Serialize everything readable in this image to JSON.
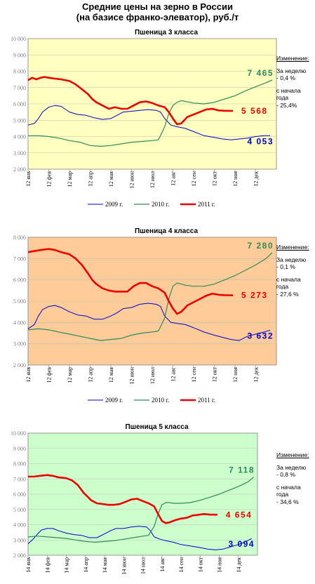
{
  "title_line1": "Средние цены на зерно в России",
  "title_line2": "(на базисе франко-элеватор), руб./т",
  "change_header": "Изменение:",
  "week_label": "За неделю",
  "since_label": "с начала\nгода",
  "colors": {
    "y2009": "#0000cc",
    "y2010": "#2e8b57",
    "y2011": "#ee0000",
    "grid": "#bfbfbf"
  },
  "chart_data": [
    {
      "type": "line",
      "title": "Пшеница 3 класса",
      "background": "#ffffc0",
      "ylim": [
        2000,
        10000
      ],
      "yticks": [
        2000,
        3000,
        4000,
        5000,
        6000,
        7000,
        8000,
        9000,
        10000
      ],
      "ytick_labels": [
        "2 000",
        "3 000",
        "4 000",
        "5 000",
        "6 000",
        "7 000",
        "8 000",
        "9 000",
        "10 000"
      ],
      "xticks": [
        "12 янв",
        "12 фев",
        "12 мар",
        "12 апр",
        "12 мая",
        "12 июн",
        "12 июл",
        "12 авг",
        "12 сен",
        "12 окт",
        "12 ноя",
        "12 дек"
      ],
      "legend": [
        "2009 г.",
        "2010 г.",
        "2011 г."
      ],
      "end_labels": {
        "y2010": "7 465",
        "y2011": "5 568",
        "y2009": "4 053"
      },
      "week_change": "- 0,4 %",
      "ytd_change": "- 25,4%",
      "series": [
        {
          "name": "2009 г.",
          "x": [
            0,
            0.3,
            0.5,
            0.7,
            1,
            1.3,
            1.6,
            2,
            2.4,
            2.8,
            3.2,
            3.6,
            4,
            4.3,
            4.6,
            5,
            5.4,
            5.8,
            6.2,
            6.4,
            6.6,
            6.9,
            7.2,
            7.6,
            8,
            8.5,
            9,
            9.4,
            9.8,
            10.2,
            10.6,
            11,
            11.4,
            11.7
          ],
          "values": [
            4700,
            4800,
            5100,
            5500,
            5800,
            5900,
            5850,
            5500,
            5350,
            5300,
            5150,
            5050,
            5100,
            5300,
            5500,
            5550,
            5600,
            5650,
            5600,
            5500,
            5100,
            4700,
            4600,
            4500,
            4300,
            4050,
            3950,
            3850,
            3800,
            3850,
            3900,
            4000,
            4050,
            4053
          ]
        },
        {
          "name": "2010 г.",
          "x": [
            0,
            0.5,
            1,
            1.5,
            2,
            2.5,
            3,
            3.5,
            4,
            4.5,
            5,
            5.5,
            6,
            6.3,
            6.6,
            6.8,
            7,
            7.2,
            7.4,
            7.6,
            8,
            8.5,
            9,
            9.5,
            10,
            10.5,
            11,
            11.5,
            11.8
          ],
          "values": [
            4050,
            4050,
            4000,
            3900,
            3750,
            3650,
            3450,
            3400,
            3450,
            3550,
            3650,
            3700,
            3750,
            3800,
            4600,
            5400,
            5900,
            6100,
            6200,
            6150,
            6050,
            6000,
            6100,
            6300,
            6500,
            6800,
            7050,
            7300,
            7465
          ]
        },
        {
          "name": "2011 г.",
          "x": [
            0,
            0.2,
            0.4,
            0.6,
            0.8,
            1,
            1.3,
            1.6,
            2,
            2.3,
            2.6,
            2.9,
            3.1,
            3.3,
            3.6,
            3.9,
            4.2,
            4.5,
            4.8,
            5.1,
            5.4,
            5.7,
            6,
            6.3,
            6.6,
            6.8,
            7,
            7.2,
            7.4,
            7.7,
            8,
            8.3,
            8.6,
            8.9,
            9.2,
            9.5,
            9.9
          ],
          "values": [
            7450,
            7600,
            7500,
            7600,
            7650,
            7600,
            7550,
            7500,
            7400,
            7200,
            6900,
            6600,
            6300,
            6100,
            5900,
            5700,
            5800,
            5700,
            5700,
            5900,
            6100,
            6150,
            6050,
            5900,
            5800,
            5500,
            5100,
            4750,
            4800,
            5200,
            5350,
            5500,
            5650,
            5700,
            5600,
            5580,
            5568
          ]
        }
      ]
    },
    {
      "type": "line",
      "title": "Пшеница 4 класса",
      "background": "#ffcc99",
      "ylim": [
        2000,
        8000
      ],
      "yticks": [
        2000,
        3000,
        4000,
        5000,
        6000,
        7000,
        8000
      ],
      "ytick_labels": [
        "2 000",
        "3 000",
        "4 000",
        "5 000",
        "6 000",
        "7 000",
        "8 000"
      ],
      "xticks": [
        "12 янв",
        "12 фев",
        "12 мар",
        "12 апр",
        "12 мая",
        "12 июн",
        "12 июл",
        "12 авг",
        "12 сен",
        "12 окт",
        "12 ноя",
        "12 дек"
      ],
      "legend": [
        "2009 г.",
        "2010 г.",
        "2011 г."
      ],
      "end_labels": {
        "y2010": "7 280",
        "y2011": "5 273",
        "y2009": "3 632"
      },
      "week_change": "- 0,1 %",
      "ytd_change": "- 27,6 %",
      "series": [
        {
          "name": "2009 г.",
          "x": [
            0,
            0.3,
            0.5,
            0.7,
            1,
            1.3,
            1.6,
            2,
            2.4,
            2.8,
            3.2,
            3.6,
            4,
            4.3,
            4.6,
            5,
            5.4,
            5.8,
            6.2,
            6.4,
            6.6,
            6.9,
            7.2,
            7.6,
            8,
            8.5,
            9,
            9.4,
            9.8,
            10.2,
            10.6,
            11,
            11.4,
            11.7
          ],
          "values": [
            3700,
            3900,
            4300,
            4600,
            4750,
            4800,
            4700,
            4500,
            4350,
            4300,
            4150,
            4150,
            4300,
            4450,
            4650,
            4700,
            4850,
            4900,
            4850,
            4750,
            4300,
            4000,
            3950,
            3900,
            3750,
            3550,
            3400,
            3300,
            3200,
            3150,
            3350,
            3450,
            3550,
            3632
          ]
        },
        {
          "name": "2010 г.",
          "x": [
            0,
            0.5,
            1,
            1.5,
            2,
            2.5,
            3,
            3.5,
            4,
            4.5,
            5,
            5.5,
            6,
            6.3,
            6.6,
            6.8,
            7,
            7.2,
            7.4,
            7.6,
            8,
            8.5,
            9,
            9.5,
            10,
            10.5,
            11,
            11.5,
            11.8
          ],
          "values": [
            3650,
            3700,
            3650,
            3550,
            3450,
            3350,
            3250,
            3150,
            3200,
            3250,
            3400,
            3500,
            3550,
            3600,
            4200,
            5100,
            5700,
            5850,
            5800,
            5750,
            5700,
            5700,
            5800,
            6000,
            6200,
            6450,
            6700,
            7000,
            7280
          ]
        },
        {
          "name": "2011 г.",
          "x": [
            0,
            0.3,
            0.6,
            1,
            1.3,
            1.6,
            2,
            2.3,
            2.6,
            2.9,
            3.1,
            3.3,
            3.6,
            3.9,
            4.2,
            4.5,
            4.8,
            5.1,
            5.4,
            5.7,
            6,
            6.3,
            6.6,
            6.8,
            7,
            7.2,
            7.4,
            7.7,
            8,
            8.3,
            8.6,
            8.9,
            9.2,
            9.5,
            9.9
          ],
          "values": [
            7300,
            7350,
            7400,
            7450,
            7400,
            7300,
            7200,
            7000,
            6700,
            6300,
            6000,
            5800,
            5600,
            5500,
            5450,
            5450,
            5450,
            5700,
            5850,
            5850,
            5700,
            5600,
            5400,
            5000,
            4650,
            4400,
            4500,
            4800,
            4950,
            5100,
            5250,
            5350,
            5300,
            5280,
            5273
          ]
        }
      ]
    },
    {
      "type": "line",
      "title": "Пшеница 5 класса",
      "background": "#ccffcc",
      "ylim": [
        2000,
        10000
      ],
      "yticks": [
        2000,
        3000,
        4000,
        5000,
        6000,
        7000,
        8000,
        9000,
        10000
      ],
      "ytick_labels": [
        "2 000",
        "3 000",
        "4 000",
        "5 000",
        "6 000",
        "7 000",
        "8 000",
        "9 000",
        "10 000"
      ],
      "xticks": [
        "14 янв",
        "14 фев",
        "14 мар",
        "14 апр",
        "14 мая",
        "14 июн",
        "14 июл",
        "14 авг",
        "14 сен",
        "14 окт",
        "14 ноя",
        "14 дек"
      ],
      "legend": [
        "2009 г.",
        "2010 г.",
        "2011 г."
      ],
      "end_labels": {
        "y2010": "7 118",
        "y2011": "4 654",
        "y2009": "3 094"
      },
      "week_change": "- 0,8 %",
      "ytd_change": "- 34,6 %",
      "series": [
        {
          "name": "2009 г.",
          "x": [
            0,
            0.3,
            0.5,
            0.7,
            1,
            1.3,
            1.6,
            2,
            2.4,
            2.8,
            3.2,
            3.6,
            4,
            4.3,
            4.6,
            5,
            5.4,
            5.8,
            6.2,
            6.4,
            6.6,
            6.9,
            7.2,
            7.6,
            8,
            8.5,
            9,
            9.4,
            9.8,
            10.2,
            10.6,
            11,
            11.4,
            11.7
          ],
          "values": [
            2750,
            3100,
            3400,
            3650,
            3750,
            3750,
            3600,
            3450,
            3350,
            3300,
            3150,
            3150,
            3400,
            3600,
            3750,
            3750,
            3850,
            3900,
            3850,
            3600,
            3200,
            3050,
            2950,
            2850,
            2700,
            2600,
            2500,
            2400,
            2350,
            2400,
            2550,
            2700,
            2900,
            3094
          ]
        },
        {
          "name": "2010 г.",
          "x": [
            0,
            0.5,
            1,
            1.5,
            2,
            2.5,
            3,
            3.5,
            4,
            4.5,
            5,
            5.5,
            6,
            6.3,
            6.6,
            6.8,
            7,
            7.2,
            7.4,
            7.6,
            8,
            8.5,
            9,
            9.5,
            10,
            10.5,
            11,
            11.5,
            11.8
          ],
          "values": [
            3200,
            3250,
            3200,
            3150,
            3100,
            3000,
            2900,
            2850,
            2900,
            2950,
            3050,
            3150,
            3250,
            3300,
            3900,
            4700,
            5300,
            5450,
            5450,
            5400,
            5400,
            5450,
            5600,
            5800,
            6000,
            6250,
            6500,
            6800,
            7118
          ]
        },
        {
          "name": "2011 г.",
          "x": [
            0,
            0.3,
            0.6,
            1,
            1.3,
            1.6,
            2,
            2.3,
            2.6,
            2.9,
            3.1,
            3.3,
            3.6,
            3.9,
            4.2,
            4.5,
            4.8,
            5.1,
            5.4,
            5.7,
            6,
            6.3,
            6.6,
            6.8,
            7,
            7.2,
            7.4,
            7.7,
            8,
            8.3,
            8.6,
            8.9,
            9.2,
            9.5,
            9.9
          ],
          "values": [
            7150,
            7150,
            7200,
            7250,
            7200,
            7100,
            7050,
            6900,
            6600,
            6100,
            5850,
            5600,
            5400,
            5350,
            5300,
            5300,
            5350,
            5500,
            5650,
            5700,
            5550,
            5400,
            5200,
            4700,
            4250,
            4100,
            4150,
            4300,
            4400,
            4450,
            4600,
            4650,
            4700,
            4660,
            4654
          ]
        }
      ]
    }
  ]
}
